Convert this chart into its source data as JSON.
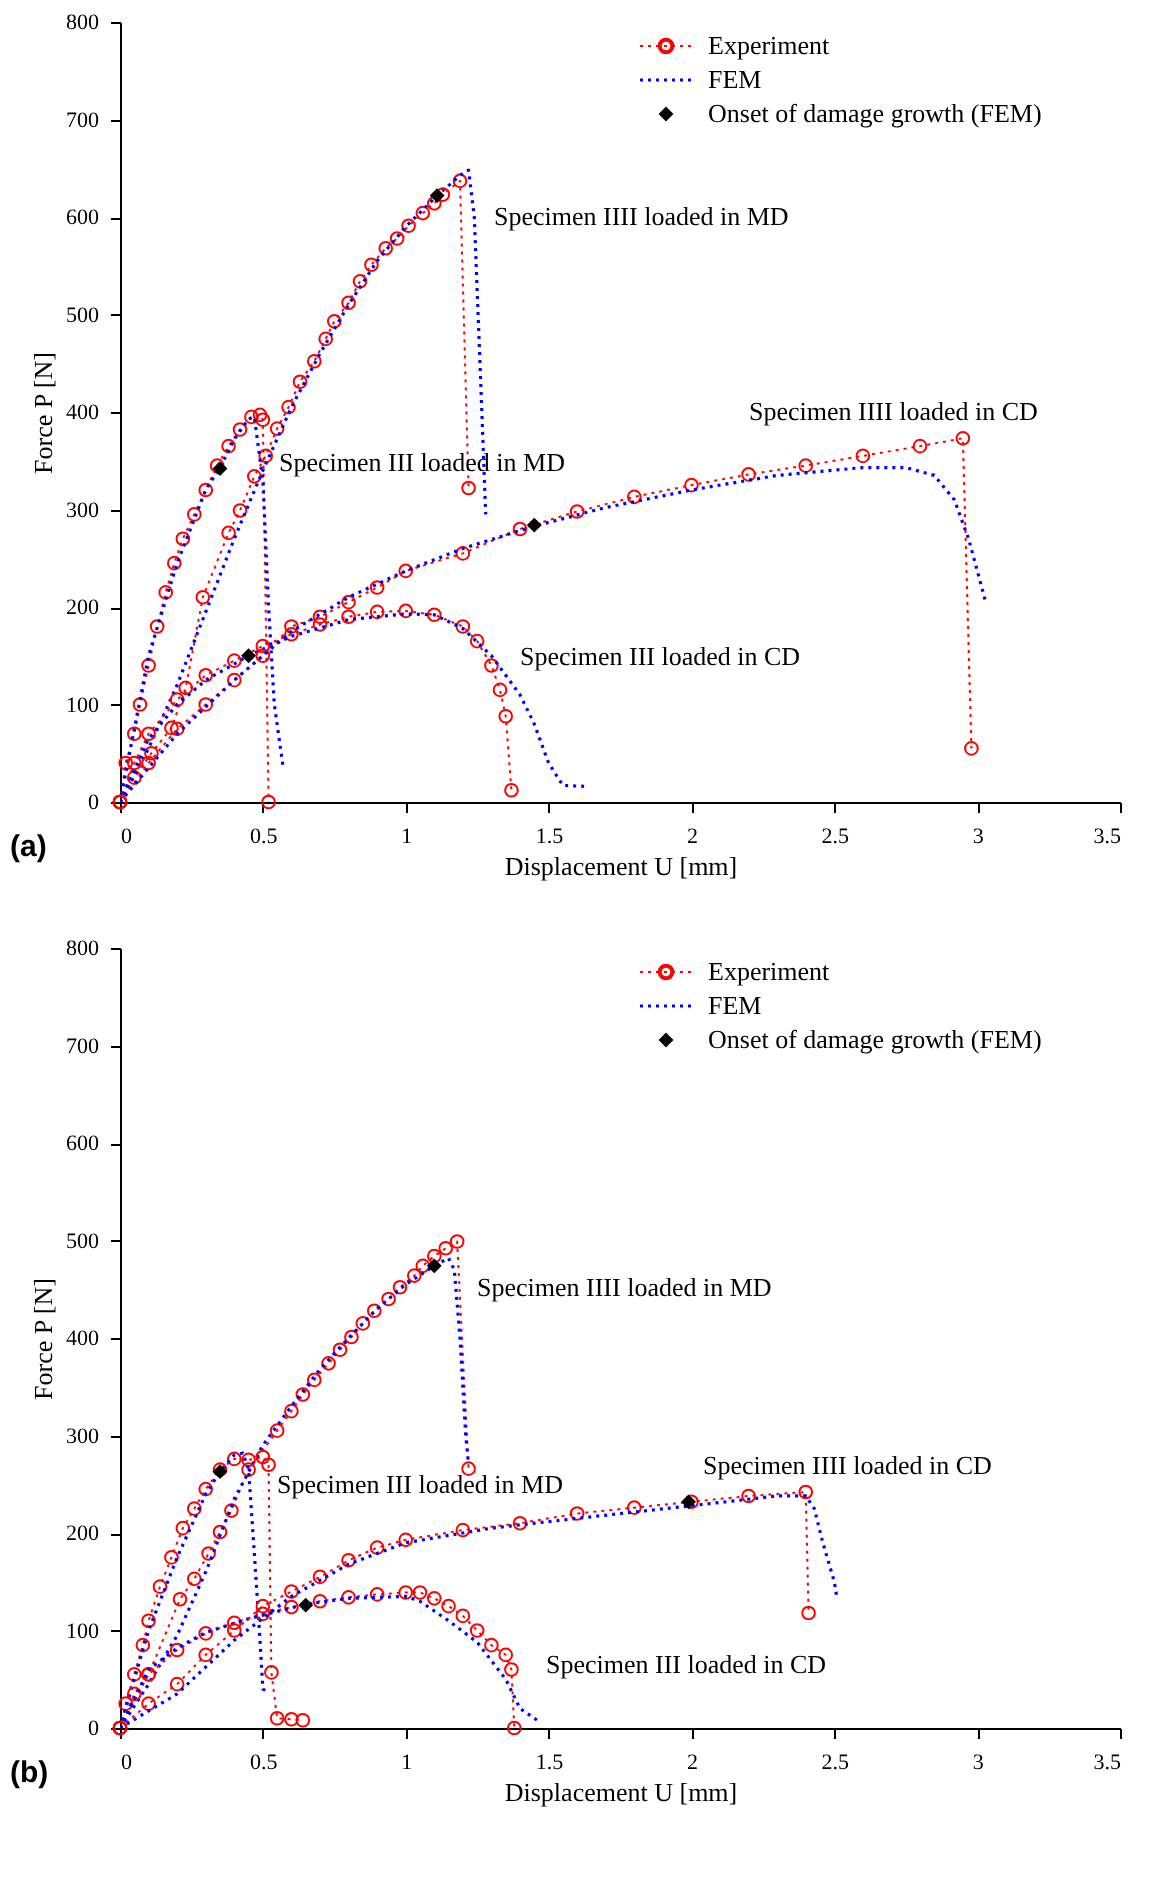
{
  "chart_data": [
    {
      "type": "line",
      "xlabel": "Displacement U [mm]",
      "ylabel": "Force P [N]",
      "xlim": [
        0,
        3.5
      ],
      "xticks": [
        0,
        0.5,
        1,
        1.5,
        2,
        2.5,
        3,
        3.5
      ],
      "ylim": [
        0,
        800
      ],
      "yticks": [
        0,
        100,
        200,
        300,
        400,
        500,
        600,
        700,
        800
      ],
      "legend": "top right",
      "annotations": [
        "Specimen IIII loaded in MD",
        "Specimen III loaded in MD",
        "Specimen IIII loaded in CD",
        "Specimen III loaded in CD",
        "(a)"
      ],
      "series": [
        {
          "name": "Experiment",
          "color": "#ff0000",
          "marker": "circle",
          "line_style": "dotted",
          "x": [
            0,
            0.05,
            0.11,
            0.18,
            0.23,
            0.29,
            0.38,
            0.42,
            0.47,
            0.51,
            0.55,
            0.59,
            0.63,
            0.68,
            0.72,
            0.75,
            0.8,
            0.84,
            0.88,
            0.93,
            0.97,
            1.01,
            1.06,
            1.1,
            1.13,
            1.19,
            1.22
          ],
          "values": [
            0,
            25,
            50,
            76,
            117,
            210,
            276,
            299,
            334,
            355,
            383,
            405,
            431,
            452,
            475,
            493,
            512,
            534,
            551,
            568,
            578,
            591,
            604,
            614,
            623,
            637,
            322
          ]
        },
        {
          "name": "FEM",
          "color": "#0000ff",
          "type": "line",
          "marker": "none",
          "line_style": "dotted",
          "x": [
            0,
            0.1,
            0.2,
            0.3,
            0.4,
            0.5,
            0.6,
            0.7,
            0.8,
            0.9,
            1.0,
            1.11,
            1.2,
            1.22,
            1.24,
            1.26,
            1.28
          ],
          "values": [
            0,
            55,
            120,
            195,
            270,
            340,
            405,
            460,
            510,
            555,
            590,
            622,
            645,
            648,
            600,
            450,
            295
          ]
        },
        {
          "color": "#ff0000",
          "type": "line",
          "marker": "circle",
          "line_style": "dotted",
          "x": [
            0,
            0.02,
            0.05,
            0.07,
            0.1,
            0.13,
            0.16,
            0.19,
            0.22,
            0.26,
            0.3,
            0.34,
            0.38,
            0.42,
            0.46,
            0.49,
            0.5,
            0.52
          ],
          "values": [
            0,
            40,
            70,
            100,
            140,
            180,
            215,
            245,
            270,
            295,
            320,
            345,
            365,
            382,
            395,
            397,
            392,
            0
          ]
        },
        {
          "color": "#0000ff",
          "type": "line",
          "marker": "none",
          "line_style": "dotted",
          "x": [
            0,
            0.1,
            0.2,
            0.3,
            0.35,
            0.4,
            0.45,
            0.47,
            0.5,
            0.52,
            0.54,
            0.57
          ],
          "values": [
            0,
            150,
            245,
            320,
            343,
            372,
            393,
            395,
            330,
            200,
            100,
            38
          ]
        },
        {
          "color": "#ff0000",
          "type": "line",
          "marker": "circle",
          "line_style": "dotted",
          "x": [
            0,
            0.05,
            0.1,
            0.2,
            0.3,
            0.4,
            0.5,
            0.6,
            0.7,
            0.8,
            0.9,
            1.0,
            1.1,
            1.2,
            1.25,
            1.3,
            1.33,
            1.35,
            1.37
          ],
          "values": [
            0,
            40,
            70,
            105,
            130,
            145,
            160,
            172,
            182,
            190,
            195,
            196,
            192,
            180,
            165,
            140,
            115,
            88,
            12
          ]
        },
        {
          "color": "#0000ff",
          "type": "line",
          "marker": "none",
          "line_style": "dotted",
          "x": [
            0,
            0.1,
            0.2,
            0.3,
            0.45,
            0.6,
            0.8,
            1.0,
            1.1,
            1.2,
            1.3,
            1.4,
            1.45,
            1.5,
            1.55,
            1.63
          ],
          "values": [
            0,
            65,
            100,
            125,
            150,
            170,
            187,
            193,
            192,
            178,
            150,
            110,
            80,
            40,
            17,
            16
          ]
        },
        {
          "color": "#ff0000",
          "type": "line",
          "marker": "circle",
          "line_style": "dotted",
          "x": [
            0,
            0.1,
            0.2,
            0.3,
            0.4,
            0.5,
            0.6,
            0.7,
            0.8,
            0.9,
            1.0,
            1.2,
            1.4,
            1.6,
            1.8,
            2.0,
            2.2,
            2.4,
            2.6,
            2.8,
            2.95,
            2.98
          ],
          "values": [
            0,
            40,
            75,
            100,
            125,
            150,
            180,
            190,
            205,
            220,
            237,
            255,
            280,
            298,
            313,
            325,
            336,
            345,
            355,
            365,
            373,
            55
          ]
        },
        {
          "color": "#0000ff",
          "type": "line",
          "marker": "none",
          "line_style": "dotted",
          "x": [
            0,
            0.2,
            0.4,
            0.6,
            0.8,
            1.0,
            1.2,
            1.45,
            1.7,
            2.0,
            2.3,
            2.6,
            2.75,
            2.85,
            2.92,
            2.97,
            3.03
          ],
          "values": [
            0,
            70,
            125,
            175,
            210,
            237,
            260,
            283,
            302,
            320,
            335,
            343,
            343,
            335,
            310,
            270,
            205
          ]
        },
        {
          "name": "Onset of damage growth (FEM)",
          "color": "#000000",
          "type": "scatter",
          "marker": "diamond",
          "x": [
            0.35,
            1.11,
            0.45,
            1.45
          ],
          "values": [
            342,
            622,
            150,
            284
          ]
        }
      ]
    },
    {
      "type": "line",
      "xlabel": "Displacement U [mm]",
      "ylabel": "Force P [N]",
      "xlim": [
        0,
        3.5
      ],
      "xticks": [
        0,
        0.5,
        1,
        1.5,
        2,
        2.5,
        3,
        3.5
      ],
      "ylim": [
        0,
        800
      ],
      "yticks": [
        0,
        100,
        200,
        300,
        400,
        500,
        600,
        700,
        800
      ],
      "legend": "top right",
      "annotations": [
        "Specimen IIII loaded in MD",
        "Specimen III loaded in MD",
        "Specimen IIII loaded in CD",
        "Specimen III loaded in CD",
        "(b)"
      ],
      "series": [
        {
          "name": "Experiment",
          "color": "#ff0000",
          "marker": "circle",
          "line_style": "dotted",
          "x": [
            0,
            0.1,
            0.21,
            0.26,
            0.31,
            0.35,
            0.39,
            0.45,
            0.55,
            0.6,
            0.64,
            0.68,
            0.73,
            0.77,
            0.81,
            0.85,
            0.89,
            0.94,
            0.98,
            1.03,
            1.06,
            1.1,
            1.14,
            1.18,
            1.22
          ],
          "values": [
            0,
            55,
            132,
            153,
            179,
            201,
            223,
            265,
            305,
            325,
            342,
            357,
            374,
            388,
            401,
            415,
            428,
            440,
            452,
            464,
            474,
            484,
            492,
            499,
            266
          ]
        },
        {
          "name": "FEM",
          "color": "#0000ff",
          "type": "line",
          "marker": "none",
          "line_style": "dotted",
          "x": [
            0,
            0.1,
            0.2,
            0.3,
            0.4,
            0.5,
            0.6,
            0.7,
            0.8,
            0.9,
            1.0,
            1.1,
            1.15,
            1.17,
            1.19,
            1.21,
            1.22
          ],
          "values": [
            0,
            45,
            95,
            160,
            235,
            290,
            330,
            368,
            400,
            430,
            455,
            474,
            482,
            470,
            400,
            300,
            270
          ]
        },
        {
          "color": "#ff0000",
          "type": "line",
          "marker": "circle",
          "line_style": "dotted",
          "x": [
            0,
            0.02,
            0.05,
            0.08,
            0.1,
            0.14,
            0.18,
            0.22,
            0.26,
            0.3,
            0.35,
            0.4,
            0.45,
            0.5,
            0.52,
            0.53,
            0.55,
            0.6,
            0.64
          ],
          "values": [
            0,
            25,
            55,
            85,
            110,
            145,
            175,
            205,
            225,
            245,
            265,
            276,
            275,
            278,
            270,
            57,
            10,
            9,
            8
          ]
        },
        {
          "color": "#0000ff",
          "type": "line",
          "marker": "none",
          "line_style": "dotted",
          "x": [
            0,
            0.1,
            0.2,
            0.3,
            0.35,
            0.4,
            0.43,
            0.45,
            0.47,
            0.49,
            0.5,
            0.51
          ],
          "values": [
            0,
            100,
            175,
            240,
            263,
            280,
            282,
            265,
            180,
            90,
            40,
            38
          ]
        },
        {
          "color": "#ff0000",
          "type": "line",
          "marker": "circle",
          "line_style": "dotted",
          "x": [
            0,
            0.05,
            0.1,
            0.2,
            0.3,
            0.4,
            0.5,
            0.6,
            0.7,
            0.8,
            0.9,
            1.0,
            1.05,
            1.1,
            1.15,
            1.2,
            1.25,
            1.3,
            1.35,
            1.37,
            1.38
          ],
          "values": [
            0,
            35,
            55,
            80,
            97,
            108,
            117,
            124,
            130,
            134,
            137,
            139,
            139,
            133,
            125,
            115,
            100,
            85,
            75,
            60,
            0
          ]
        },
        {
          "color": "#0000ff",
          "type": "line",
          "marker": "none",
          "line_style": "dotted",
          "x": [
            0,
            0.1,
            0.2,
            0.3,
            0.45,
            0.65,
            0.8,
            1.0,
            1.05,
            1.15,
            1.25,
            1.35,
            1.4,
            1.46
          ],
          "values": [
            0,
            60,
            82,
            98,
            112,
            127,
            133,
            135,
            130,
            110,
            88,
            50,
            20,
            8
          ]
        },
        {
          "color": "#ff0000",
          "type": "line",
          "marker": "circle",
          "line_style": "dotted",
          "x": [
            0,
            0.1,
            0.2,
            0.3,
            0.4,
            0.5,
            0.6,
            0.7,
            0.8,
            0.9,
            1.0,
            1.2,
            1.4,
            1.6,
            1.8,
            2.0,
            2.2,
            2.4,
            2.41
          ],
          "values": [
            0,
            25,
            45,
            75,
            100,
            125,
            140,
            155,
            172,
            185,
            193,
            203,
            210,
            220,
            226,
            232,
            238,
            242,
            118
          ]
        },
        {
          "color": "#0000ff",
          "type": "line",
          "marker": "none",
          "line_style": "dotted",
          "x": [
            0,
            0.2,
            0.4,
            0.6,
            0.8,
            1.0,
            1.3,
            1.6,
            2.0,
            2.3,
            2.4,
            2.43,
            2.46,
            2.5,
            2.51
          ],
          "values": [
            0,
            35,
            90,
            135,
            168,
            190,
            205,
            215,
            228,
            238,
            238,
            225,
            190,
            150,
            132
          ]
        },
        {
          "name": "Onset of damage growth (FEM)",
          "color": "#000000",
          "type": "scatter",
          "marker": "diamond",
          "x": [
            0.35,
            1.1,
            0.65,
            1.99
          ],
          "values": [
            263,
            474,
            126,
            232
          ]
        }
      ]
    }
  ]
}
